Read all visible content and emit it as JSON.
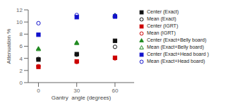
{
  "chart_data": {
    "type": "scatter",
    "xlabel": "Gantry  angle (degrees)",
    "ylabel": "Attenuation %",
    "x": [
      0,
      30,
      60
    ],
    "xlim": [
      -8,
      75
    ],
    "xticks": [
      0,
      30,
      60
    ],
    "ylim": [
      0,
      12
    ],
    "yticks": [
      0,
      2,
      4,
      6,
      8,
      10,
      12
    ],
    "grid": false,
    "legend": "right",
    "series": [
      {
        "name": "Center (Exact)",
        "color": "#111111",
        "marker": "square",
        "values": [
          3.8,
          4.7,
          6.9
        ]
      },
      {
        "name": "Mean (Exact)",
        "color": "#111111",
        "marker": "circle_open",
        "values": [
          3.9,
          4.6,
          5.9
        ]
      },
      {
        "name": "Center (IGRT)",
        "color": "#cc0000",
        "marker": "square",
        "values": [
          2.6,
          3.5,
          4.1
        ]
      },
      {
        "name": "Mean (IGRT)",
        "color": "#cc0000",
        "marker": "circle_open",
        "values": [
          2.7,
          3.4,
          4.0
        ]
      },
      {
        "name": "Center (Exact+Belly board)",
        "color": "#228B22",
        "marker": "triangle",
        "values": [
          5.6,
          6.6,
          11.0
        ]
      },
      {
        "name": "Mean (Exact+Belly board)",
        "color": "#228B22",
        "marker": "triangle_open",
        "values": [
          5.5,
          6.5,
          11.1
        ]
      },
      {
        "name": "Center (Exact+Head board )",
        "color": "#1111cc",
        "marker": "square",
        "values": [
          7.9,
          10.8,
          10.9
        ]
      },
      {
        "name": "Mean (Exact+Head board)",
        "color": "#1111cc",
        "marker": "circle_open",
        "values": [
          9.8,
          11.15,
          11.05
        ]
      }
    ]
  }
}
